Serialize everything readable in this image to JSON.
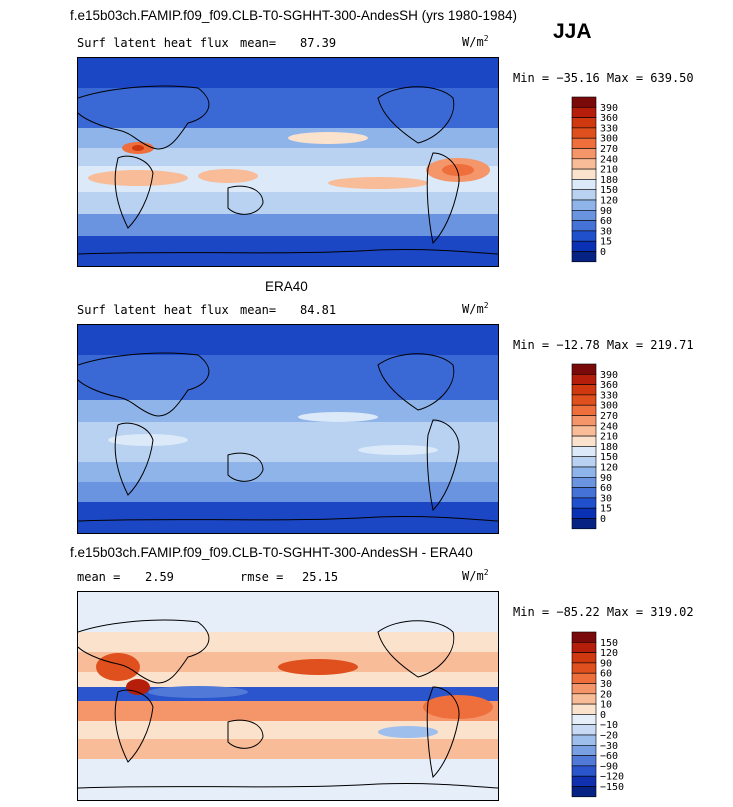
{
  "main_title": "f.e15b03ch.FAMIP.f09_f09.CLB-T0-SGHHT-300-AndesSH (yrs 1980-1984)",
  "season": "JJA",
  "chart_data": [
    {
      "type": "heatmap",
      "title": "f.e15b03ch.FAMIP.f09_f09.CLB-T0-SGHHT-300-AndesSH (yrs 1980-1984)",
      "variable": "Surf latent heat flux",
      "stat_label": "mean=",
      "stat_value": "87.39",
      "units": "W/m",
      "units_exp": "2",
      "min_max": "Min = −35.16 Max = 639.50",
      "colorbar": {
        "levels": [
          "390",
          "360",
          "330",
          "300",
          "270",
          "240",
          "210",
          "180",
          "150",
          "120",
          "90",
          "60",
          "30",
          "15",
          "0"
        ],
        "colors": [
          "#7a0a0a",
          "#b41e0a",
          "#d0380f",
          "#e0501e",
          "#ee6e3c",
          "#f5966a",
          "#f9bc98",
          "#fbe2cc",
          "#dbe9f8",
          "#b9d2f2",
          "#8fb4ea",
          "#6a93e0",
          "#4472d7",
          "#2150cc",
          "#0a30b4",
          "#062383"
        ]
      }
    },
    {
      "type": "heatmap",
      "title": "ERA40",
      "variable": "Surf latent heat flux",
      "stat_label": "mean=",
      "stat_value": "84.81",
      "units": "W/m",
      "units_exp": "2",
      "min_max": "Min = −12.78 Max = 219.71",
      "colorbar": {
        "levels": [
          "390",
          "360",
          "330",
          "300",
          "270",
          "240",
          "210",
          "180",
          "150",
          "120",
          "90",
          "60",
          "30",
          "15",
          "0"
        ],
        "colors": [
          "#7a0a0a",
          "#b41e0a",
          "#d0380f",
          "#e0501e",
          "#ee6e3c",
          "#f5966a",
          "#f9bc98",
          "#fbe2cc",
          "#dbe9f8",
          "#b9d2f2",
          "#8fb4ea",
          "#6a93e0",
          "#4472d7",
          "#2150cc",
          "#0a30b4",
          "#062383"
        ]
      }
    },
    {
      "type": "heatmap",
      "title": "f.e15b03ch.FAMIP.f09_f09.CLB-T0-SGHHT-300-AndesSH - ERA40",
      "stat_label": "mean =",
      "stat_value": "2.59",
      "stat2_label": "rmse =",
      "stat2_value": "25.15",
      "units": "W/m",
      "units_exp": "2",
      "min_max": "Min = −85.22 Max = 319.02",
      "colorbar": {
        "levels": [
          "150",
          "120",
          "90",
          "60",
          "30",
          "20",
          "10",
          "0",
          "−10",
          "−20",
          "−30",
          "−60",
          "−90",
          "−120",
          "−150"
        ],
        "colors": [
          "#7a0a0a",
          "#b41e0a",
          "#d0380f",
          "#e0501e",
          "#ee6e3c",
          "#f5966a",
          "#f9bc98",
          "#fbe2cc",
          "#e6eefa",
          "#c8daf4",
          "#9ebfec",
          "#7aa0e4",
          "#5079d8",
          "#2a55cc",
          "#1030b0",
          "#062383"
        ]
      }
    }
  ]
}
